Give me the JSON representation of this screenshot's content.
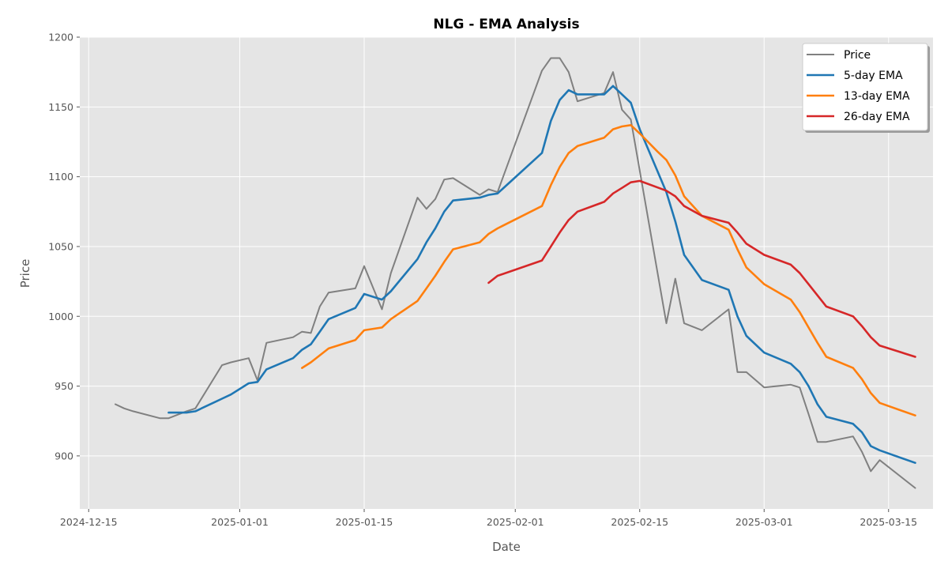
{
  "chart_data": {
    "type": "line",
    "title": "NLG - EMA Analysis",
    "xlabel": "Date",
    "ylabel": "Price",
    "x_ticks": [
      "2024-12-15",
      "2025-01-01",
      "2025-01-15",
      "2025-02-01",
      "2025-02-15",
      "2025-03-01",
      "2025-03-15"
    ],
    "y_ticks": [
      900,
      950,
      1000,
      1050,
      1100,
      1150,
      1200
    ],
    "xlim": [
      "2024-12-14",
      "2025-03-20"
    ],
    "ylim": [
      862,
      1200
    ],
    "grid": true,
    "legend_position": "top-right",
    "series": [
      {
        "name": "Price",
        "color": "#808080",
        "points": [
          [
            "2024-12-18",
            937
          ],
          [
            "2024-12-19",
            934
          ],
          [
            "2024-12-20",
            932
          ],
          [
            "2024-12-23",
            927
          ],
          [
            "2024-12-24",
            927
          ],
          [
            "2024-12-26",
            932
          ],
          [
            "2024-12-27",
            934
          ],
          [
            "2024-12-30",
            965
          ],
          [
            "2024-12-31",
            967
          ],
          [
            "2025-01-02",
            970
          ],
          [
            "2025-01-03",
            954
          ],
          [
            "2025-01-04",
            981
          ],
          [
            "2025-01-07",
            985
          ],
          [
            "2025-01-08",
            989
          ],
          [
            "2025-01-09",
            988
          ],
          [
            "2025-01-10",
            1007
          ],
          [
            "2025-01-11",
            1017
          ],
          [
            "2025-01-14",
            1020
          ],
          [
            "2025-01-15",
            1036
          ],
          [
            "2025-01-17",
            1005
          ],
          [
            "2025-01-18",
            1031
          ],
          [
            "2025-01-21",
            1085
          ],
          [
            "2025-01-22",
            1077
          ],
          [
            "2025-01-23",
            1084
          ],
          [
            "2025-01-24",
            1098
          ],
          [
            "2025-01-25",
            1099
          ],
          [
            "2025-01-28",
            1087
          ],
          [
            "2025-01-29",
            1091
          ],
          [
            "2025-01-30",
            1089
          ],
          [
            "2025-02-04",
            1176
          ],
          [
            "2025-02-05",
            1185
          ],
          [
            "2025-02-06",
            1185
          ],
          [
            "2025-02-07",
            1175
          ],
          [
            "2025-02-08",
            1154
          ],
          [
            "2025-02-11",
            1160
          ],
          [
            "2025-02-12",
            1175
          ],
          [
            "2025-02-13",
            1148
          ],
          [
            "2025-02-14",
            1141
          ],
          [
            "2025-02-18",
            995
          ],
          [
            "2025-02-19",
            1027
          ],
          [
            "2025-02-20",
            995
          ],
          [
            "2025-02-22",
            990
          ],
          [
            "2025-02-25",
            1005
          ],
          [
            "2025-02-26",
            960
          ],
          [
            "2025-02-27",
            960
          ],
          [
            "2025-03-01",
            949
          ],
          [
            "2025-03-04",
            951
          ],
          [
            "2025-03-05",
            949
          ],
          [
            "2025-03-06",
            930
          ],
          [
            "2025-03-07",
            910
          ],
          [
            "2025-03-08",
            910
          ],
          [
            "2025-03-11",
            914
          ],
          [
            "2025-03-12",
            903
          ],
          [
            "2025-03-13",
            889
          ],
          [
            "2025-03-14",
            897
          ],
          [
            "2025-03-18",
            877
          ]
        ]
      },
      {
        "name": "5-day EMA",
        "color": "#1f77b4",
        "points": [
          [
            "2024-12-24",
            931
          ],
          [
            "2024-12-26",
            931
          ],
          [
            "2024-12-27",
            932
          ],
          [
            "2024-12-30",
            941
          ],
          [
            "2024-12-31",
            944
          ],
          [
            "2025-01-02",
            952
          ],
          [
            "2025-01-03",
            953
          ],
          [
            "2025-01-04",
            962
          ],
          [
            "2025-01-07",
            970
          ],
          [
            "2025-01-08",
            976
          ],
          [
            "2025-01-09",
            980
          ],
          [
            "2025-01-10",
            989
          ],
          [
            "2025-01-11",
            998
          ],
          [
            "2025-01-14",
            1006
          ],
          [
            "2025-01-15",
            1016
          ],
          [
            "2025-01-17",
            1012
          ],
          [
            "2025-01-18",
            1018
          ],
          [
            "2025-01-21",
            1041
          ],
          [
            "2025-01-22",
            1053
          ],
          [
            "2025-01-23",
            1063
          ],
          [
            "2025-01-24",
            1075
          ],
          [
            "2025-01-25",
            1083
          ],
          [
            "2025-01-28",
            1085
          ],
          [
            "2025-01-29",
            1087
          ],
          [
            "2025-01-30",
            1088
          ],
          [
            "2025-02-04",
            1117
          ],
          [
            "2025-02-05",
            1140
          ],
          [
            "2025-02-06",
            1155
          ],
          [
            "2025-02-07",
            1162
          ],
          [
            "2025-02-08",
            1159
          ],
          [
            "2025-02-11",
            1159
          ],
          [
            "2025-02-12",
            1165
          ],
          [
            "2025-02-13",
            1159
          ],
          [
            "2025-02-14",
            1153
          ],
          [
            "2025-02-15",
            1134
          ],
          [
            "2025-02-18",
            1089
          ],
          [
            "2025-02-19",
            1068
          ],
          [
            "2025-02-20",
            1044
          ],
          [
            "2025-02-22",
            1026
          ],
          [
            "2025-02-25",
            1019
          ],
          [
            "2025-02-26",
            1000
          ],
          [
            "2025-02-27",
            986
          ],
          [
            "2025-03-01",
            974
          ],
          [
            "2025-03-04",
            966
          ],
          [
            "2025-03-05",
            960
          ],
          [
            "2025-03-06",
            950
          ],
          [
            "2025-03-07",
            937
          ],
          [
            "2025-03-08",
            928
          ],
          [
            "2025-03-11",
            923
          ],
          [
            "2025-03-12",
            917
          ],
          [
            "2025-03-13",
            907
          ],
          [
            "2025-03-14",
            904
          ],
          [
            "2025-03-18",
            895
          ]
        ]
      },
      {
        "name": "13-day EMA",
        "color": "#ff7f0e",
        "points": [
          [
            "2025-01-08",
            963
          ],
          [
            "2025-01-09",
            967
          ],
          [
            "2025-01-11",
            977
          ],
          [
            "2025-01-14",
            983
          ],
          [
            "2025-01-15",
            990
          ],
          [
            "2025-01-17",
            992
          ],
          [
            "2025-01-18",
            998
          ],
          [
            "2025-01-21",
            1011
          ],
          [
            "2025-01-22",
            1020
          ],
          [
            "2025-01-23",
            1029
          ],
          [
            "2025-01-24",
            1039
          ],
          [
            "2025-01-25",
            1048
          ],
          [
            "2025-01-28",
            1053
          ],
          [
            "2025-01-29",
            1059
          ],
          [
            "2025-01-30",
            1063
          ],
          [
            "2025-02-04",
            1079
          ],
          [
            "2025-02-05",
            1094
          ],
          [
            "2025-02-06",
            1107
          ],
          [
            "2025-02-07",
            1117
          ],
          [
            "2025-02-08",
            1122
          ],
          [
            "2025-02-11",
            1128
          ],
          [
            "2025-02-12",
            1134
          ],
          [
            "2025-02-13",
            1136
          ],
          [
            "2025-02-14",
            1137
          ],
          [
            "2025-02-15",
            1131
          ],
          [
            "2025-02-17",
            1118
          ],
          [
            "2025-02-18",
            1112
          ],
          [
            "2025-02-19",
            1101
          ],
          [
            "2025-02-20",
            1086
          ],
          [
            "2025-02-22",
            1072
          ],
          [
            "2025-02-25",
            1062
          ],
          [
            "2025-02-26",
            1048
          ],
          [
            "2025-02-27",
            1035
          ],
          [
            "2025-03-01",
            1023
          ],
          [
            "2025-03-04",
            1012
          ],
          [
            "2025-03-05",
            1003
          ],
          [
            "2025-03-06",
            992
          ],
          [
            "2025-03-07",
            981
          ],
          [
            "2025-03-08",
            971
          ],
          [
            "2025-03-11",
            963
          ],
          [
            "2025-03-12",
            955
          ],
          [
            "2025-03-13",
            945
          ],
          [
            "2025-03-14",
            938
          ],
          [
            "2025-03-18",
            929
          ]
        ]
      },
      {
        "name": "26-day EMA",
        "color": "#d62728",
        "points": [
          [
            "2025-01-29",
            1024
          ],
          [
            "2025-01-30",
            1029
          ],
          [
            "2025-02-04",
            1040
          ],
          [
            "2025-02-05",
            1050
          ],
          [
            "2025-02-06",
            1060
          ],
          [
            "2025-02-07",
            1069
          ],
          [
            "2025-02-08",
            1075
          ],
          [
            "2025-02-11",
            1082
          ],
          [
            "2025-02-12",
            1088
          ],
          [
            "2025-02-13",
            1092
          ],
          [
            "2025-02-14",
            1096
          ],
          [
            "2025-02-15",
            1097
          ],
          [
            "2025-02-18",
            1090
          ],
          [
            "2025-02-19",
            1086
          ],
          [
            "2025-02-20",
            1079
          ],
          [
            "2025-02-22",
            1072
          ],
          [
            "2025-02-25",
            1067
          ],
          [
            "2025-02-26",
            1060
          ],
          [
            "2025-02-27",
            1052
          ],
          [
            "2025-03-01",
            1044
          ],
          [
            "2025-03-04",
            1037
          ],
          [
            "2025-03-05",
            1031
          ],
          [
            "2025-03-06",
            1023
          ],
          [
            "2025-03-07",
            1015
          ],
          [
            "2025-03-08",
            1007
          ],
          [
            "2025-03-11",
            1000
          ],
          [
            "2025-03-12",
            993
          ],
          [
            "2025-03-13",
            985
          ],
          [
            "2025-03-14",
            979
          ],
          [
            "2025-03-18",
            971
          ]
        ]
      }
    ]
  }
}
